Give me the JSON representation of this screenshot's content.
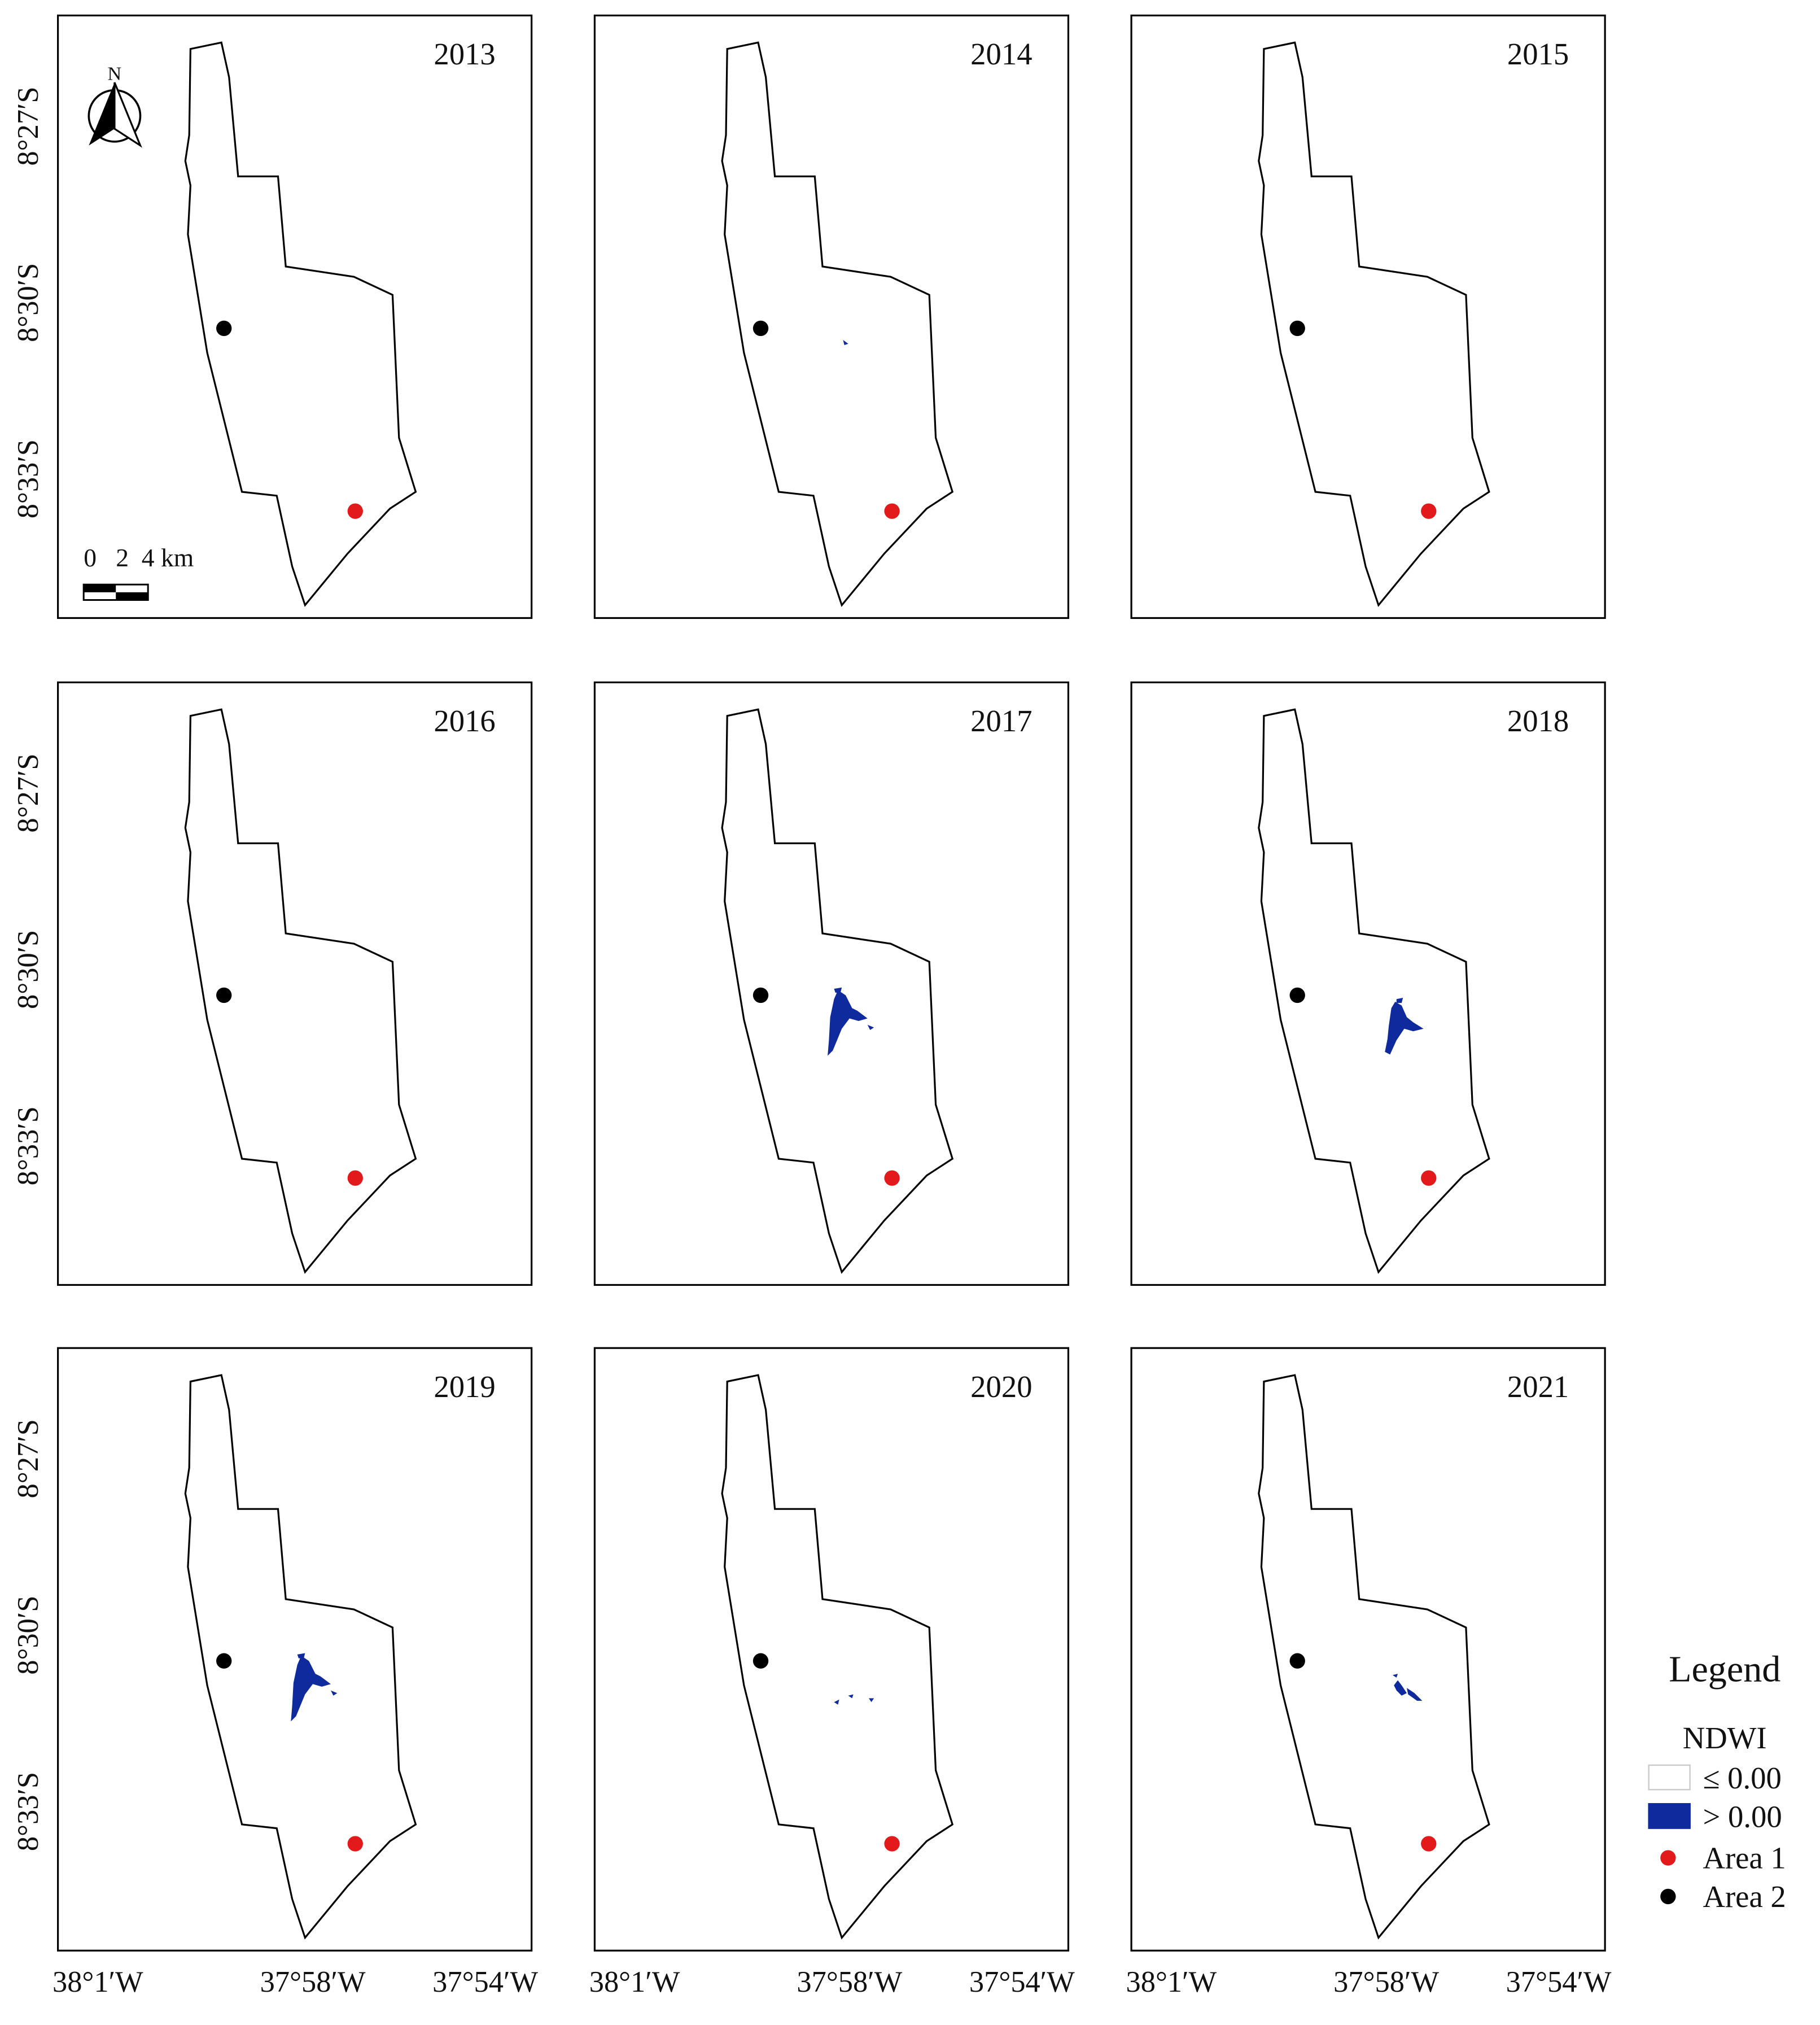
{
  "figure": {
    "panels": [
      {
        "year": "2013",
        "water": "none"
      },
      {
        "year": "2014",
        "water": "speck"
      },
      {
        "year": "2015",
        "water": "none"
      },
      {
        "year": "2016",
        "water": "none"
      },
      {
        "year": "2017",
        "water": "large"
      },
      {
        "year": "2018",
        "water": "medium"
      },
      {
        "year": "2019",
        "water": "large"
      },
      {
        "year": "2020",
        "water": "trace"
      },
      {
        "year": "2021",
        "water": "small"
      }
    ],
    "y_ticks": [
      "8°27′S",
      "8°30′S",
      "8°33′S"
    ],
    "x_ticks": [
      "38°1′W",
      "37°58′W",
      "37°54′W"
    ],
    "north_label": "N",
    "scale_bar": {
      "labels": [
        "0",
        "2",
        "4 km"
      ]
    }
  },
  "legend": {
    "title": "Legend",
    "group_title": "NDWI",
    "items": [
      {
        "label": "≤ 0.00",
        "color": "#ffffff",
        "kind": "swatch"
      },
      {
        "label": "> 0.00",
        "color": "#0f2a9c",
        "kind": "swatch"
      },
      {
        "label": "Area 1",
        "color": "#e31a1c",
        "kind": "point"
      },
      {
        "label": "Area 2",
        "color": "#000000",
        "kind": "point"
      }
    ]
  },
  "colors": {
    "frame": "#000000",
    "boundary": "#000000",
    "water": "#0f2a9c",
    "area1": "#e31a1c",
    "area2": "#000000"
  },
  "icons": [
    "north-arrow-icon",
    "scale-bar"
  ]
}
